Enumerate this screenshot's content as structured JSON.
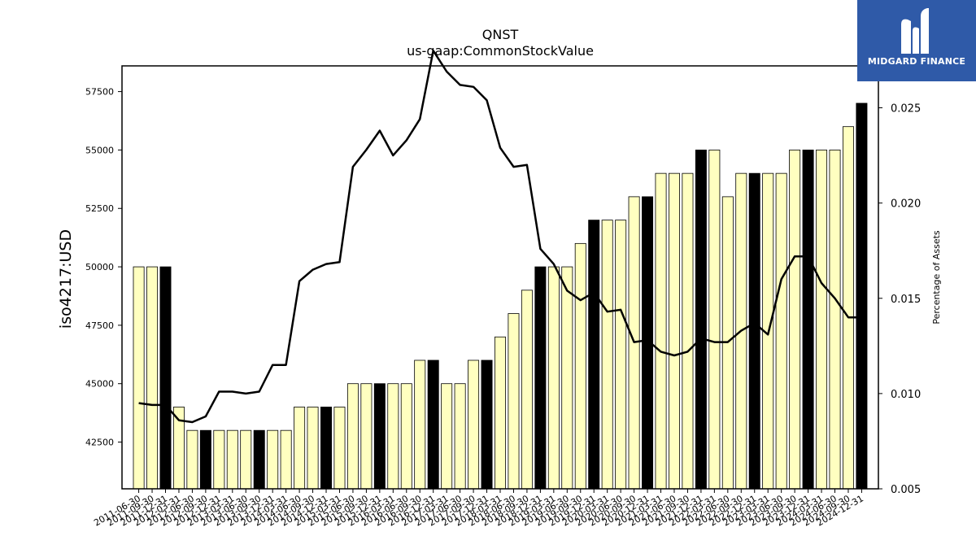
{
  "chart_data": {
    "type": "bar",
    "title": "QNST",
    "subtitle": "us-gaap:CommonStockValue",
    "ylabel": "iso4217:USD",
    "y2label": "Percentage of Assets",
    "ylim": [
      40500,
      58600
    ],
    "y2lim": [
      0.005,
      0.0272
    ],
    "yticks": [
      42500,
      45000,
      47500,
      50000,
      52500,
      55000,
      57500
    ],
    "y2ticks": [
      0.005,
      0.01,
      0.015,
      0.02,
      0.025
    ],
    "y2tick_labels": [
      "0.005",
      "0.010",
      "0.015",
      "0.020",
      "0.025"
    ],
    "categories": [
      "2011-06-30",
      "2011-09-30",
      "2011-12-31",
      "2012-03-31",
      "2012-06-30",
      "2012-09-30",
      "2012-12-31",
      "2013-03-31",
      "2013-06-30",
      "2013-09-30",
      "2013-12-31",
      "2014-03-31",
      "2014-06-30",
      "2014-09-30",
      "2014-12-31",
      "2015-03-31",
      "2015-06-30",
      "2015-09-30",
      "2015-12-31",
      "2016-03-31",
      "2016-06-30",
      "2016-09-30",
      "2016-12-31",
      "2017-03-31",
      "2017-06-30",
      "2017-09-30",
      "2017-12-31",
      "2018-03-31",
      "2018-06-30",
      "2018-09-30",
      "2018-12-31",
      "2019-03-31",
      "2019-06-30",
      "2019-09-30",
      "2019-12-31",
      "2020-03-31",
      "2020-06-30",
      "2020-09-30",
      "2020-12-31",
      "2021-03-31",
      "2021-06-30",
      "2021-09-30",
      "2021-12-31",
      "2022-03-31",
      "2022-06-30",
      "2022-09-30",
      "2022-12-31",
      "2023-03-31",
      "2023-06-30",
      "2023-09-30",
      "2023-12-31",
      "2024-03-31",
      "2024-06-30",
      "2024-09-30",
      "2024-12-31"
    ],
    "series": [
      {
        "type": "bar",
        "values": [
          50000,
          50000,
          50000,
          44000,
          43000,
          43000,
          43000,
          43000,
          43000,
          43000,
          43000,
          43000,
          44000,
          44000,
          44000,
          44000,
          45000,
          45000,
          45000,
          45000,
          45000,
          46000,
          46000,
          45000,
          45000,
          46000,
          46000,
          47000,
          48000,
          49000,
          50000,
          50000,
          50000,
          51000,
          52000,
          52000,
          52000,
          53000,
          53000,
          54000,
          54000,
          54000,
          55000,
          55000,
          53000,
          54000,
          54000,
          54000,
          54000,
          55000,
          55000,
          55000,
          55000,
          56000,
          57000
        ],
        "highlight": [
          false,
          false,
          true,
          false,
          false,
          true,
          false,
          false,
          false,
          true,
          false,
          false,
          false,
          false,
          true,
          false,
          false,
          false,
          true,
          false,
          false,
          false,
          true,
          false,
          false,
          false,
          true,
          false,
          false,
          false,
          true,
          false,
          false,
          false,
          true,
          false,
          false,
          false,
          true,
          false,
          false,
          false,
          true,
          false,
          false,
          false,
          true,
          false,
          false,
          false,
          true,
          false,
          false,
          false,
          true
        ]
      },
      {
        "type": "line",
        "axis": "right",
        "values": [
          0.0095,
          0.0094,
          0.0094,
          0.0086,
          0.0085,
          0.0088,
          0.0101,
          0.0101,
          0.01,
          0.0101,
          0.0115,
          0.0115,
          0.0159,
          0.0165,
          0.0168,
          0.0169,
          0.0219,
          0.0228,
          0.0238,
          0.0225,
          0.0233,
          0.0244,
          0.028,
          0.0269,
          0.0262,
          0.0261,
          0.0254,
          0.0229,
          0.0219,
          0.022,
          0.0176,
          0.0168,
          0.0154,
          0.0149,
          0.0153,
          0.0143,
          0.0144,
          0.0127,
          0.0128,
          0.0122,
          0.012,
          0.0122,
          0.0129,
          0.0127,
          0.0127,
          0.0133,
          0.0137,
          0.0131,
          0.016,
          0.0172,
          0.0172,
          0.0158,
          0.015,
          0.014,
          0.014
        ]
      }
    ],
    "colors": {
      "bar": "#ffffc0",
      "bar_highlight": "#000000",
      "line": "#000000"
    }
  },
  "logo": {
    "text": "MIDGARD FINANCE",
    "bg": "#2f5aa8"
  }
}
